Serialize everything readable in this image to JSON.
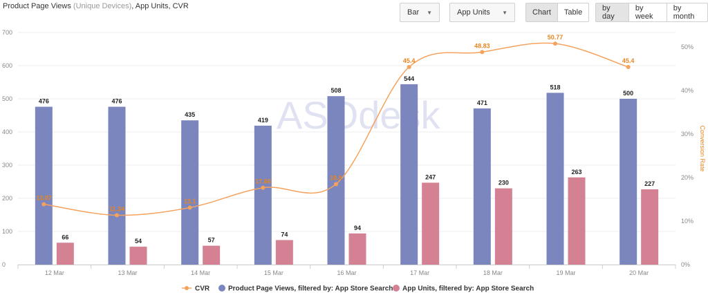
{
  "header": {
    "title_main": "Product Page Views",
    "title_muted": "(Unique Devices)",
    "title_rest": ", App Units, CVR"
  },
  "controls": {
    "chart_type": "Bar",
    "metric": "App Units",
    "view_tabs": [
      "Chart",
      "Table"
    ],
    "view_active": "Chart",
    "period_tabs": [
      "by day",
      "by week",
      "by month"
    ],
    "period_active": "by day"
  },
  "watermark": "ASOdesk",
  "chart_data": {
    "type": "bar",
    "title": "Product Page Views (Unique Devices), App Units, CVR",
    "categories": [
      "12 Mar",
      "13 Mar",
      "14 Mar",
      "15 Mar",
      "16 Mar",
      "17 Mar",
      "18 Mar",
      "19 Mar",
      "20 Mar"
    ],
    "ylim": [
      0,
      700
    ],
    "yticks": [
      0,
      100,
      200,
      300,
      400,
      500,
      600,
      700
    ],
    "y2lim": [
      0,
      53.33
    ],
    "y2ticks": [
      0,
      10,
      20,
      30,
      40,
      50
    ],
    "y2tick_labels": [
      "0%",
      "10%",
      "20%",
      "30%",
      "40%",
      "50%"
    ],
    "y2label": "Conversion Rate",
    "grid": true,
    "legend_position": "bottom",
    "series": [
      {
        "name": "CVR",
        "kind": "line",
        "axis": "right",
        "color": "#f5a25d",
        "label_color": "#e8851f",
        "values": [
          13.87,
          11.34,
          13.1,
          17.66,
          18.5,
          45.4,
          48.83,
          50.77,
          45.4
        ]
      },
      {
        "name": "Product Page Views, filtered by: App Store Search",
        "kind": "bar",
        "axis": "left",
        "color": "#7b86be",
        "values": [
          476,
          476,
          435,
          419,
          508,
          544,
          471,
          518,
          500
        ]
      },
      {
        "name": "App Units, filtered by: App Store Search",
        "kind": "bar",
        "axis": "left",
        "color": "#d48293",
        "values": [
          66,
          54,
          57,
          74,
          94,
          247,
          230,
          263,
          227
        ]
      }
    ]
  }
}
